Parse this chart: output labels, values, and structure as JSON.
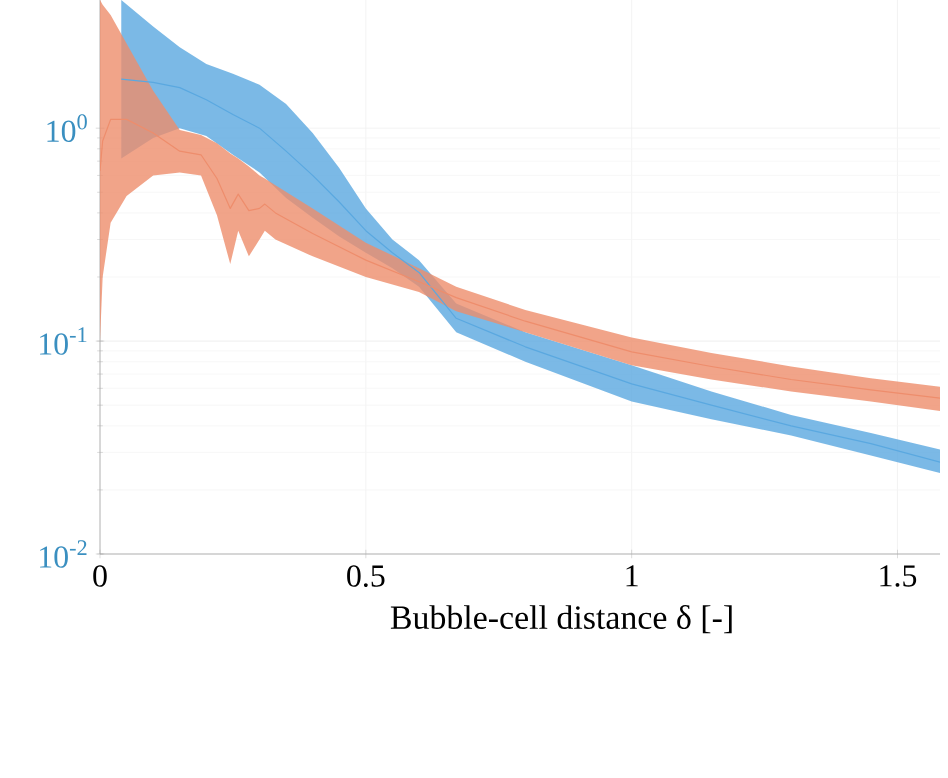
{
  "chart_data": {
    "type": "line",
    "xlabel": "Bubble-cell distance δ [-]",
    "log": "y",
    "grid": true,
    "xlim": [
      0,
      1.58
    ],
    "ylim": [
      0.01,
      4
    ],
    "xticks": [
      0,
      0.5,
      1,
      1.5
    ],
    "yticks": [
      {
        "value": 0.01,
        "label": "10$^{-2}$"
      },
      {
        "value": 0.1,
        "label": "10$^{-1}$"
      },
      {
        "value": 1,
        "label": "10$^{0}$"
      }
    ],
    "series": [
      {
        "color": "#5aa8e0",
        "x": [
          0.04,
          0.1,
          0.15,
          0.2,
          0.25,
          0.3,
          0.35,
          0.4,
          0.45,
          0.5,
          0.55,
          0.6,
          0.67,
          0.8,
          1.0,
          1.15,
          1.3,
          1.45,
          1.58
        ],
        "values": [
          1.7,
          1.64,
          1.55,
          1.36,
          1.16,
          1.0,
          0.78,
          0.6,
          0.45,
          0.33,
          0.26,
          0.21,
          0.128,
          0.094,
          0.063,
          0.05,
          0.04,
          0.033,
          0.027
        ],
        "upper": [
          4,
          3.0,
          2.4,
          2.0,
          1.8,
          1.6,
          1.3,
          0.95,
          0.65,
          0.42,
          0.3,
          0.24,
          0.15,
          0.11,
          0.077,
          0.058,
          0.045,
          0.037,
          0.031
        ],
        "lower": [
          0.72,
          0.9,
          1.0,
          0.92,
          0.75,
          0.62,
          0.47,
          0.38,
          0.31,
          0.26,
          0.22,
          0.18,
          0.11,
          0.08,
          0.052,
          0.043,
          0.036,
          0.029,
          0.024
        ]
      },
      {
        "color": "#ee8d6c",
        "x": [
          0,
          0.005,
          0.02,
          0.05,
          0.1,
          0.15,
          0.19,
          0.22,
          0.245,
          0.26,
          0.28,
          0.3,
          0.31,
          0.33,
          0.4,
          0.5,
          0.6,
          0.67,
          0.8,
          1.0,
          1.15,
          1.3,
          1.45,
          1.58
        ],
        "values": [
          0.63,
          0.87,
          1.1,
          1.1,
          0.95,
          0.78,
          0.75,
          0.58,
          0.42,
          0.49,
          0.41,
          0.42,
          0.44,
          0.4,
          0.32,
          0.24,
          0.19,
          0.16,
          0.124,
          0.089,
          0.076,
          0.066,
          0.059,
          0.054
        ],
        "upper": [
          4,
          3.8,
          3.4,
          2.5,
          1.5,
          0.98,
          0.93,
          0.85,
          0.76,
          0.72,
          0.66,
          0.6,
          0.58,
          0.54,
          0.42,
          0.29,
          0.22,
          0.18,
          0.14,
          0.104,
          0.088,
          0.076,
          0.067,
          0.061
        ],
        "lower": [
          0.1,
          0.2,
          0.36,
          0.48,
          0.6,
          0.62,
          0.6,
          0.39,
          0.23,
          0.33,
          0.25,
          0.3,
          0.33,
          0.3,
          0.25,
          0.2,
          0.17,
          0.138,
          0.11,
          0.077,
          0.066,
          0.058,
          0.052,
          0.047
        ]
      }
    ]
  }
}
